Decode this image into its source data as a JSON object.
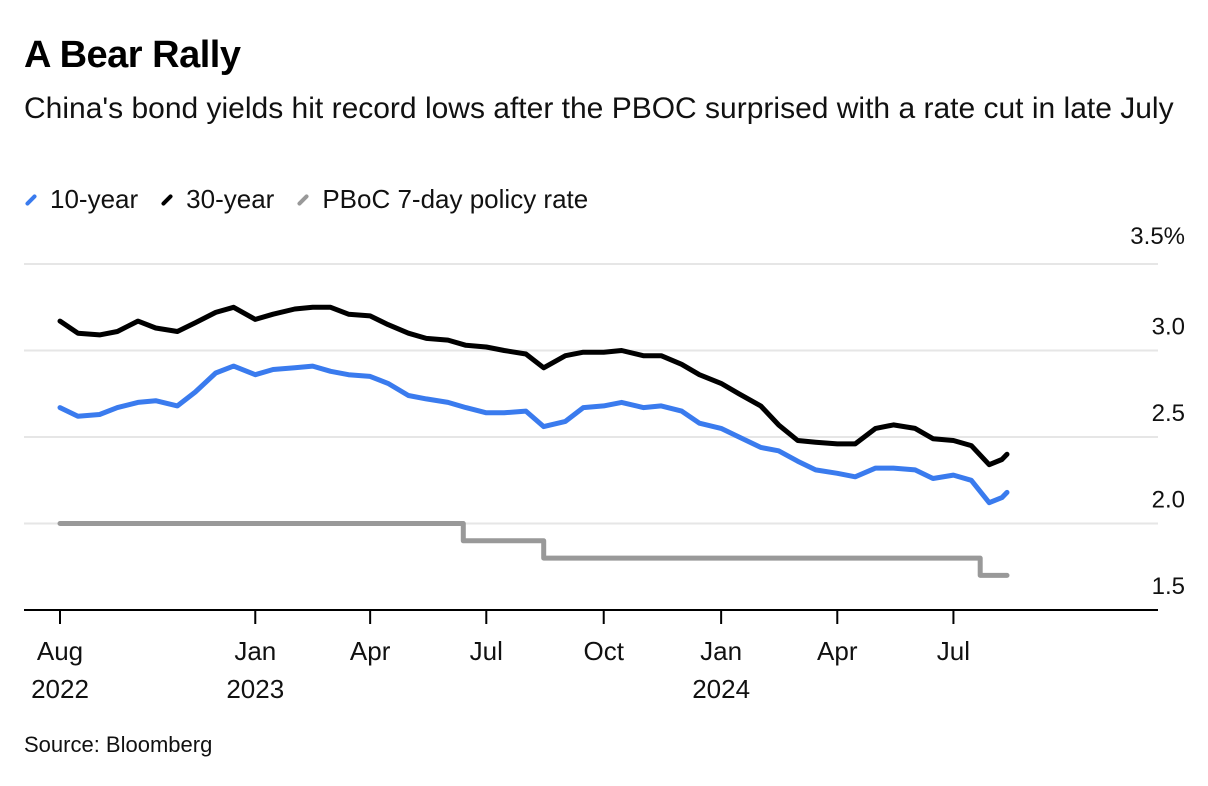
{
  "title": "A Bear Rally",
  "subtitle": "China's bond yields hit record lows after the PBOC surprised with a rate cut in late July",
  "source": "Source: Bloomberg",
  "colors": {
    "ten_year": "#3a7bee",
    "thirty_year": "#000000",
    "policy": "#999999",
    "grid": "#e6e6e6"
  },
  "legend": [
    {
      "label": "10-year",
      "color": "#3a7bee"
    },
    {
      "label": "30-year",
      "color": "#000000"
    },
    {
      "label": "PBoC 7-day policy rate",
      "color": "#999999"
    }
  ],
  "chart_data": {
    "type": "line",
    "title": "A Bear Rally",
    "subtitle": "China's bond yields hit record lows after the PBOC surprised with a rate cut in late July",
    "ylim": [
      1.5,
      3.5
    ],
    "y_ticks": [
      "3.5%",
      "3.0",
      "2.5",
      "2.0",
      "1.5"
    ],
    "y_tick_values": [
      3.5,
      3.0,
      2.5,
      2.0,
      1.5
    ],
    "x_ticks": [
      {
        "date": "2022-08-01",
        "label": [
          "Aug",
          "2022"
        ]
      },
      {
        "date": "2023-01-01",
        "label": [
          "Jan",
          "2023"
        ]
      },
      {
        "date": "2023-04-01",
        "label": [
          "Apr"
        ]
      },
      {
        "date": "2023-07-01",
        "label": [
          "Jul"
        ]
      },
      {
        "date": "2023-10-01",
        "label": [
          "Oct"
        ]
      },
      {
        "date": "2024-01-01",
        "label": [
          "Jan",
          "2024"
        ]
      },
      {
        "date": "2024-04-01",
        "label": [
          "Apr"
        ]
      },
      {
        "date": "2024-07-01",
        "label": [
          "Jul"
        ]
      }
    ],
    "grid": true,
    "legend_position": "top-left",
    "series": [
      {
        "name": "10-year",
        "color": "#3a7bee",
        "points": [
          [
            "2022-08-01",
            2.67
          ],
          [
            "2022-08-15",
            2.62
          ],
          [
            "2022-09-01",
            2.63
          ],
          [
            "2022-09-15",
            2.67
          ],
          [
            "2022-10-01",
            2.7
          ],
          [
            "2022-10-15",
            2.71
          ],
          [
            "2022-11-01",
            2.68
          ],
          [
            "2022-11-15",
            2.76
          ],
          [
            "2022-12-01",
            2.87
          ],
          [
            "2022-12-15",
            2.91
          ],
          [
            "2023-01-01",
            2.86
          ],
          [
            "2023-01-15",
            2.89
          ],
          [
            "2023-02-01",
            2.9
          ],
          [
            "2023-02-15",
            2.91
          ],
          [
            "2023-03-01",
            2.88
          ],
          [
            "2023-03-15",
            2.86
          ],
          [
            "2023-04-01",
            2.85
          ],
          [
            "2023-04-15",
            2.81
          ],
          [
            "2023-05-01",
            2.74
          ],
          [
            "2023-05-15",
            2.72
          ],
          [
            "2023-06-01",
            2.7
          ],
          [
            "2023-06-15",
            2.67
          ],
          [
            "2023-07-01",
            2.64
          ],
          [
            "2023-07-15",
            2.64
          ],
          [
            "2023-08-01",
            2.65
          ],
          [
            "2023-08-15",
            2.56
          ],
          [
            "2023-09-01",
            2.59
          ],
          [
            "2023-09-15",
            2.67
          ],
          [
            "2023-10-01",
            2.68
          ],
          [
            "2023-10-15",
            2.7
          ],
          [
            "2023-11-01",
            2.67
          ],
          [
            "2023-11-15",
            2.68
          ],
          [
            "2023-12-01",
            2.65
          ],
          [
            "2023-12-15",
            2.58
          ],
          [
            "2024-01-01",
            2.55
          ],
          [
            "2024-01-15",
            2.5
          ],
          [
            "2024-02-01",
            2.44
          ],
          [
            "2024-02-15",
            2.42
          ],
          [
            "2024-03-01",
            2.36
          ],
          [
            "2024-03-15",
            2.31
          ],
          [
            "2024-04-01",
            2.29
          ],
          [
            "2024-04-15",
            2.27
          ],
          [
            "2024-05-01",
            2.32
          ],
          [
            "2024-05-15",
            2.32
          ],
          [
            "2024-06-01",
            2.31
          ],
          [
            "2024-06-15",
            2.26
          ],
          [
            "2024-07-01",
            2.28
          ],
          [
            "2024-07-15",
            2.25
          ],
          [
            "2024-07-29",
            2.12
          ],
          [
            "2024-08-08",
            2.15
          ],
          [
            "2024-08-12",
            2.18
          ]
        ]
      },
      {
        "name": "30-year",
        "color": "#000000",
        "points": [
          [
            "2022-08-01",
            3.17
          ],
          [
            "2022-08-15",
            3.1
          ],
          [
            "2022-09-01",
            3.09
          ],
          [
            "2022-09-15",
            3.11
          ],
          [
            "2022-10-01",
            3.17
          ],
          [
            "2022-10-15",
            3.13
          ],
          [
            "2022-11-01",
            3.11
          ],
          [
            "2022-11-15",
            3.16
          ],
          [
            "2022-12-01",
            3.22
          ],
          [
            "2022-12-15",
            3.25
          ],
          [
            "2023-01-01",
            3.18
          ],
          [
            "2023-01-15",
            3.21
          ],
          [
            "2023-02-01",
            3.24
          ],
          [
            "2023-02-15",
            3.25
          ],
          [
            "2023-03-01",
            3.25
          ],
          [
            "2023-03-15",
            3.21
          ],
          [
            "2023-04-01",
            3.2
          ],
          [
            "2023-04-15",
            3.15
          ],
          [
            "2023-05-01",
            3.1
          ],
          [
            "2023-05-15",
            3.07
          ],
          [
            "2023-06-01",
            3.06
          ],
          [
            "2023-06-15",
            3.03
          ],
          [
            "2023-07-01",
            3.02
          ],
          [
            "2023-07-15",
            3.0
          ],
          [
            "2023-08-01",
            2.98
          ],
          [
            "2023-08-15",
            2.9
          ],
          [
            "2023-09-01",
            2.97
          ],
          [
            "2023-09-15",
            2.99
          ],
          [
            "2023-10-01",
            2.99
          ],
          [
            "2023-10-15",
            3.0
          ],
          [
            "2023-11-01",
            2.97
          ],
          [
            "2023-11-15",
            2.97
          ],
          [
            "2023-12-01",
            2.92
          ],
          [
            "2023-12-15",
            2.86
          ],
          [
            "2024-01-01",
            2.81
          ],
          [
            "2024-01-15",
            2.75
          ],
          [
            "2024-02-01",
            2.68
          ],
          [
            "2024-02-15",
            2.57
          ],
          [
            "2024-03-01",
            2.48
          ],
          [
            "2024-03-15",
            2.47
          ],
          [
            "2024-04-01",
            2.46
          ],
          [
            "2024-04-15",
            2.46
          ],
          [
            "2024-05-01",
            2.55
          ],
          [
            "2024-05-15",
            2.57
          ],
          [
            "2024-06-01",
            2.55
          ],
          [
            "2024-06-15",
            2.49
          ],
          [
            "2024-07-01",
            2.48
          ],
          [
            "2024-07-15",
            2.45
          ],
          [
            "2024-07-29",
            2.34
          ],
          [
            "2024-08-08",
            2.37
          ],
          [
            "2024-08-12",
            2.4
          ]
        ]
      },
      {
        "name": "PBoC 7-day policy rate",
        "color": "#999999",
        "step": true,
        "points": [
          [
            "2022-08-01",
            2.0
          ],
          [
            "2023-06-13",
            2.0
          ],
          [
            "2023-06-13",
            1.9
          ],
          [
            "2023-08-15",
            1.9
          ],
          [
            "2023-08-15",
            1.8
          ],
          [
            "2024-07-22",
            1.8
          ],
          [
            "2024-07-22",
            1.7
          ],
          [
            "2024-08-12",
            1.7
          ]
        ]
      }
    ]
  }
}
